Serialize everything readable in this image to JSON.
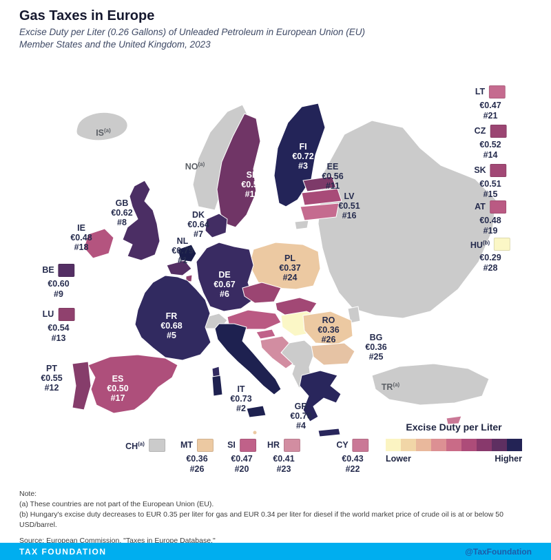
{
  "header": {
    "title": "Gas Taxes in Europe",
    "subtitle": "Excise Duty per Liter (0.26 Gallons) of Unleaded Petroleum in European Union (EU) Member States and the United Kingdom, 2023"
  },
  "map": {
    "labels": [
      {
        "code": "IS",
        "sup": "(a)",
        "style": "gray"
      },
      {
        "code": "NO",
        "sup": "(a)",
        "style": "gray"
      },
      {
        "code": "TR",
        "sup": "(a)",
        "style": "gray"
      },
      {
        "code": "FI",
        "value": "€0.72",
        "rank": "#3",
        "style": "light"
      },
      {
        "code": "SE",
        "value": "€0.58",
        "rank": "#10",
        "style": "light"
      },
      {
        "code": "EE",
        "value": "€0.56",
        "rank": "#11",
        "style": "dark"
      },
      {
        "code": "LV",
        "value": "€0.51",
        "rank": "#16",
        "style": "dark"
      },
      {
        "code": "DK",
        "value": "€0.64",
        "rank": "#7",
        "style": "dark"
      },
      {
        "code": "GB",
        "value": "€0.62",
        "rank": "#8",
        "style": "dark"
      },
      {
        "code": "IE",
        "value": "€0.48",
        "rank": "#18",
        "style": "dark"
      },
      {
        "code": "NL",
        "value": "€0.79",
        "rank": "#1",
        "style": "dark"
      },
      {
        "code": "DE",
        "value": "€0.67",
        "rank": "#6",
        "style": "light"
      },
      {
        "code": "PL",
        "value": "€0.37",
        "rank": "#24",
        "style": "dark"
      },
      {
        "code": "FR",
        "value": "€0.68",
        "rank": "#5",
        "style": "light"
      },
      {
        "code": "RO",
        "value": "€0.36",
        "rank": "#26",
        "style": "dark"
      },
      {
        "code": "BG",
        "value": "€0.36",
        "rank": "#25",
        "style": "dark"
      },
      {
        "code": "PT",
        "value": "€0.55",
        "rank": "#12",
        "style": "dark"
      },
      {
        "code": "ES",
        "value": "€0.50",
        "rank": "#17",
        "style": "light"
      },
      {
        "code": "IT",
        "value": "€0.73",
        "rank": "#2",
        "style": "dark"
      },
      {
        "code": "GR",
        "value": "€0.70",
        "rank": "#4",
        "style": "dark"
      }
    ],
    "fills": {
      "NL": "#191d49",
      "IT": "#1e2150",
      "FI": "#232458",
      "GR": "#29265c",
      "FR": "#312a60",
      "DE": "#392b62",
      "DK": "#422d63",
      "GB": "#4b2e64",
      "BE": "#542f64",
      "SE": "#703566",
      "EE": "#7d3a69",
      "PT": "#863d6b",
      "LU": "#90416e",
      "CZ": "#9b4572",
      "SK": "#a24875",
      "LV": "#a84b78",
      "ES": "#ae4f7b",
      "IE": "#b4547f",
      "AT": "#ba5a83",
      "SI": "#c06189",
      "LT": "#c56b8f",
      "CY": "#ca7896",
      "HR": "#d28da1",
      "PL": "#ecc9a2",
      "BG": "#e6c3a4",
      "RO": "#ecc9a2",
      "MT": "#ecc9a2",
      "HU": "#fbf7c6",
      "nonEU": "#cbcbcb"
    }
  },
  "entries": [
    {
      "code": "LT",
      "value": "€0.47",
      "rank": "#21",
      "color": "#c56b8f"
    },
    {
      "code": "CZ",
      "value": "€0.52",
      "rank": "#14",
      "color": "#9b4572"
    },
    {
      "code": "SK",
      "value": "€0.51",
      "rank": "#15",
      "color": "#a24875"
    },
    {
      "code": "AT",
      "value": "€0.48",
      "rank": "#19",
      "color": "#ba5a83"
    },
    {
      "code": "HU",
      "sup": "(b)",
      "value": "€0.29",
      "rank": "#28",
      "color": "#fbf7c6"
    },
    {
      "code": "BE",
      "value": "€0.60",
      "rank": "#9",
      "color": "#542f64"
    },
    {
      "code": "LU",
      "value": "€0.54",
      "rank": "#13",
      "color": "#90416e"
    },
    {
      "code": "CH",
      "sup": "(a)",
      "color": "#cbcbcb"
    },
    {
      "code": "MT",
      "value": "€0.36",
      "rank": "#26",
      "color": "#ecc9a2"
    },
    {
      "code": "SI",
      "value": "€0.47",
      "rank": "#20",
      "color": "#c06189"
    },
    {
      "code": "HR",
      "value": "€0.41",
      "rank": "#23",
      "color": "#d28da1"
    },
    {
      "code": "CY",
      "value": "€0.43",
      "rank": "#22",
      "color": "#ca7896"
    }
  ],
  "legend": {
    "title": "Excise Duty per Liter",
    "lower": "Lower",
    "higher": "Higher",
    "colors": [
      "#fbf4c2",
      "#f1d6a7",
      "#e9b89c",
      "#dc9093",
      "#c96b87",
      "#ad4c79",
      "#88396c",
      "#5e2f61",
      "#232355"
    ]
  },
  "notes": {
    "label": "Note:",
    "a": "(a) These countries are not part of the European Union (EU).",
    "b": "(b) Hungary's excise duty decreases to EUR 0.35 per liter for gas and EUR 0.34 per liter for diesel if the world market price of crude oil is at or below 50 USD/barrel.",
    "source": "Source: European Commission, \"Taxes in Europe Database.\""
  },
  "footer": {
    "brand": "TAX FOUNDATION",
    "handle": "@TaxFoundation",
    "bar_color": "#00aeef",
    "handle_color": "#1d5ca8"
  }
}
